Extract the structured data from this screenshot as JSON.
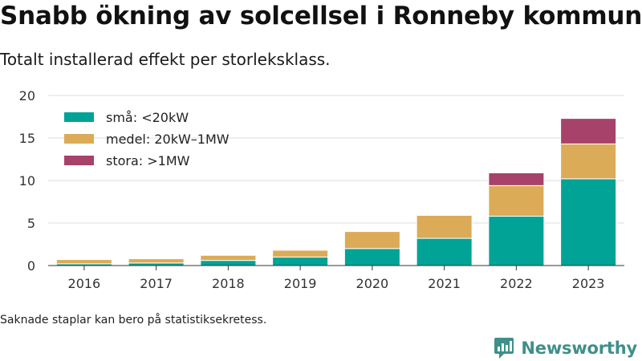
{
  "title": "Snabb ökning av solcellsel i Ronneby kommun",
  "subtitle": "Totalt installerad effekt per storleksklass.",
  "note": "Saknade staplar kan bero på statistiksekretess.",
  "brand": {
    "name": "Newsworthy",
    "icon": "newsworthy-logo-icon"
  },
  "chart_data": {
    "type": "bar",
    "stacked": true,
    "categories": [
      "2016",
      "2017",
      "2018",
      "2019",
      "2020",
      "2021",
      "2022",
      "2023"
    ],
    "series": [
      {
        "name": "små: <20kW",
        "color": "#00a396",
        "values": [
          0.2,
          0.3,
          0.6,
          1.0,
          2.0,
          3.2,
          5.8,
          10.2
        ]
      },
      {
        "name": "medel: 20kW–1MW",
        "color": "#dbab57",
        "values": [
          0.5,
          0.5,
          0.6,
          0.8,
          2.0,
          2.7,
          3.6,
          4.1
        ]
      },
      {
        "name": "stora: >1MW",
        "color": "#a7426a",
        "values": [
          0,
          0,
          0,
          0,
          0,
          0,
          1.5,
          3.0
        ]
      }
    ],
    "ylim": [
      0,
      20
    ],
    "yticks": [
      0,
      5,
      10,
      15,
      20
    ],
    "grid": true,
    "legend_position": "top-left"
  }
}
